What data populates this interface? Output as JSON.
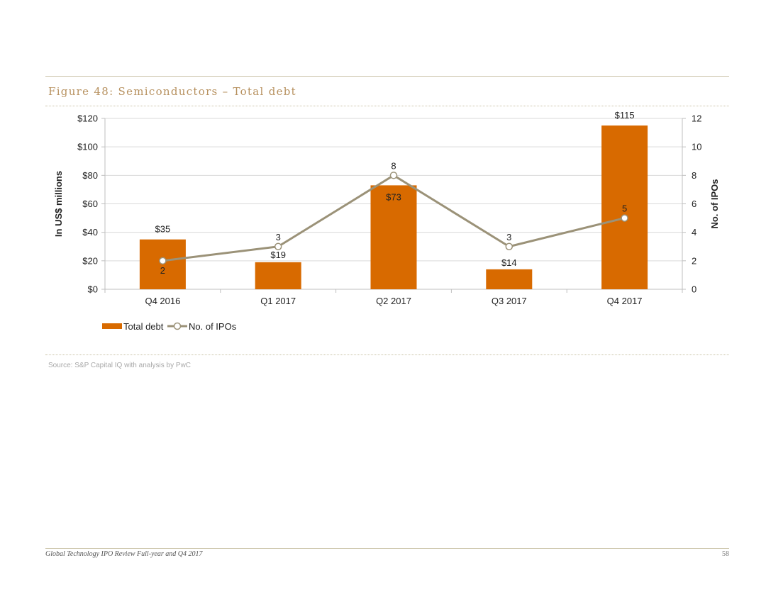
{
  "figure": {
    "title": "Figure 48: Semiconductors – Total debt"
  },
  "source": "Source: S&P Capital IQ with analysis by PwC",
  "footer": {
    "doc_title": "Global Technology IPO Review Full-year and Q4 2017",
    "page": "58"
  },
  "colors": {
    "bar": "#d86a00",
    "line": "#9b9278",
    "bar_label_inside": "#ffffff"
  },
  "chart_data": {
    "type": "bar",
    "title": "Figure 48: Semiconductors – Total debt",
    "categories": [
      "Q4 2016",
      "Q1 2017",
      "Q2 2017",
      "Q3 2017",
      "Q4 2017"
    ],
    "series": [
      {
        "name": "Total debt",
        "type": "bar",
        "axis": "left",
        "values": [
          35,
          19,
          73,
          14,
          115
        ],
        "labels": [
          "$35",
          "$19",
          "$73",
          "$14",
          "$115"
        ]
      },
      {
        "name": "No. of IPOs",
        "type": "line",
        "axis": "right",
        "values": [
          2,
          3,
          8,
          3,
          5
        ],
        "labels": [
          "2",
          "3",
          "8",
          "3",
          "5"
        ]
      }
    ],
    "ylabel": "In US$ millions",
    "ylim": [
      0,
      120
    ],
    "yticks": [
      "$0",
      "$20",
      "$40",
      "$60",
      "$80",
      "$100",
      "$120"
    ],
    "y2label": "No. of IPOs",
    "y2lim": [
      0,
      12
    ],
    "y2ticks": [
      "0",
      "2",
      "4",
      "6",
      "8",
      "10",
      "12"
    ],
    "legend": [
      "Total debt",
      "No. of IPOs"
    ],
    "legend_position": "bottom-left"
  }
}
